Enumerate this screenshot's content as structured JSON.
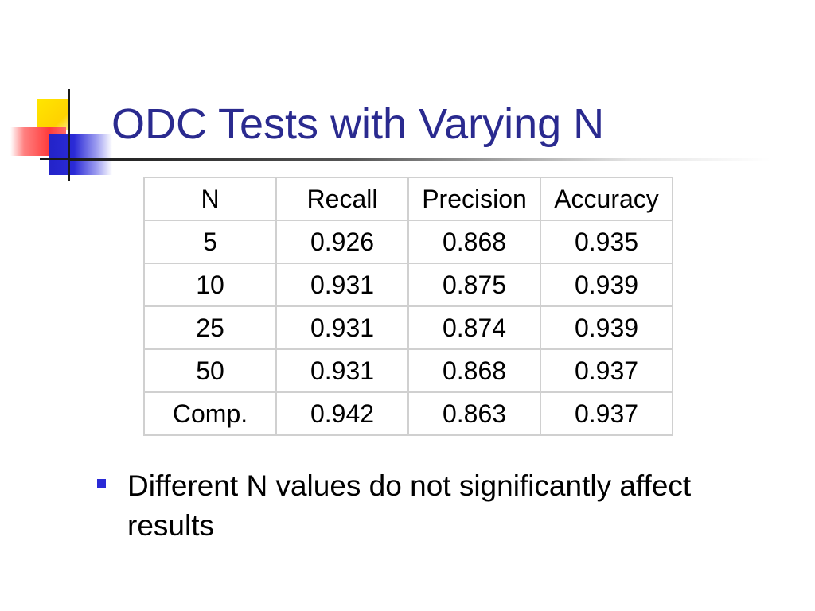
{
  "slide": {
    "title": "ODC Tests with Varying N"
  },
  "table": {
    "headers": [
      "N",
      "Recall",
      "Precision",
      "Accuracy"
    ],
    "rows": [
      [
        "5",
        "0.926",
        "0.868",
        "0.935"
      ],
      [
        "10",
        "0.931",
        "0.875",
        "0.939"
      ],
      [
        "25",
        "0.931",
        "0.874",
        "0.939"
      ],
      [
        "50",
        "0.931",
        "0.868",
        "0.937"
      ],
      [
        "Comp.",
        "0.942",
        "0.863",
        "0.937"
      ]
    ]
  },
  "bullets": [
    "Different N values do not significantly affect results"
  ],
  "colors": {
    "title": "#2a2a8f",
    "bullet_marker": "#2a2ad6",
    "table_border": "#d0d0d0"
  }
}
